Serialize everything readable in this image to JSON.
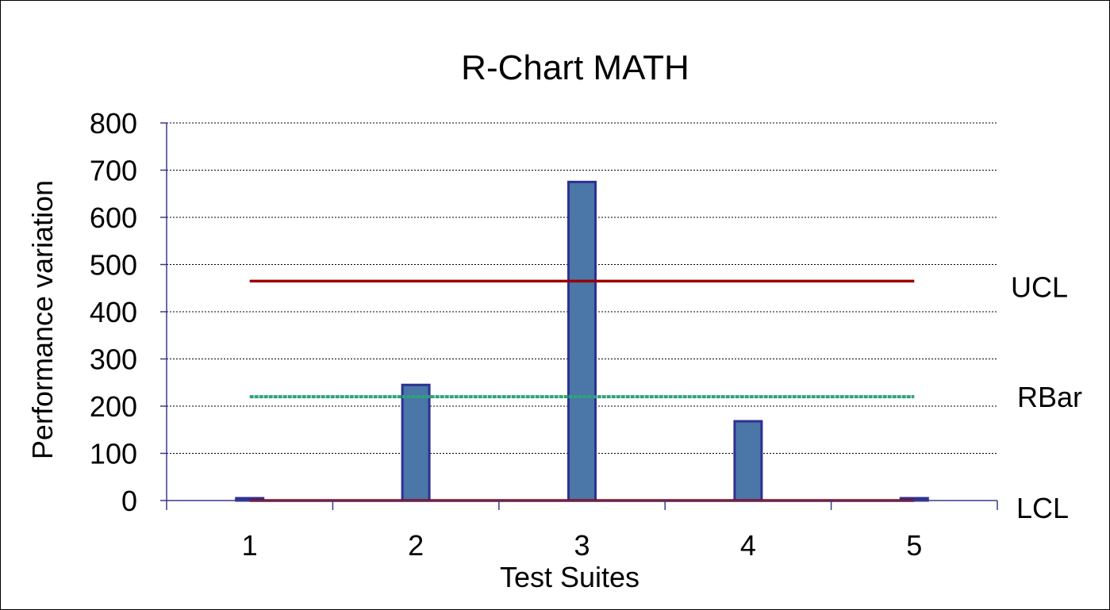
{
  "chart_data": {
    "type": "bar",
    "title": "R-Chart MATH",
    "xlabel": "Test Suites",
    "ylabel": "Performance variation",
    "categories": [
      "1",
      "2",
      "3",
      "4",
      "5"
    ],
    "values": [
      5,
      245,
      675,
      168,
      5
    ],
    "ylim": [
      0,
      800
    ],
    "yticks": [
      "0",
      "100",
      "200",
      "300",
      "400",
      "500",
      "600",
      "700",
      "800"
    ],
    "grid": true,
    "reference_lines": [
      {
        "label": "UCL",
        "value": 465,
        "color": "#990000"
      },
      {
        "label": "RBar",
        "value": 220,
        "color": "#2FA37A"
      },
      {
        "label": "LCL",
        "value": 0,
        "color": "#990000"
      }
    ],
    "bar_fill": "#4A76A8",
    "bar_stroke": "#2E3192"
  }
}
